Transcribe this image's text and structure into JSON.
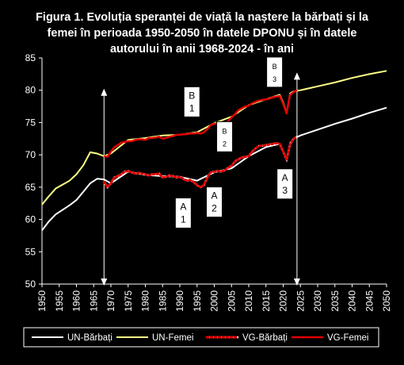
{
  "title_lines": [
    "Figura 1. Evoluția speranței de viață la naștere la bărbați și la",
    "femei în perioada 1950-2050  în datele DPONU și în datele",
    "autorului în anii 1968-2024  - în ani"
  ],
  "colors": {
    "background": "#000000",
    "un_men": "#ffffff",
    "un_women": "#ffff88",
    "vg_men_dot": "#e00000",
    "vg_women": "#e00000",
    "box_fill": "#ffffff",
    "axis_text": "#ffffff"
  },
  "chart_data": {
    "type": "line",
    "xlim": [
      1950,
      2050
    ],
    "ylim": [
      50,
      85
    ],
    "x_ticks": [
      "1950",
      "1955",
      "1960",
      "1965",
      "1970",
      "1975",
      "1980",
      "1985",
      "1990",
      "1995",
      "2000",
      "2005",
      "2010",
      "2015",
      "2020",
      "2025",
      "2030",
      "2035",
      "2040",
      "2045",
      "2050"
    ],
    "y_ticks": [
      "85",
      "80",
      "75",
      "70",
      "65",
      "60",
      "55",
      "50"
    ],
    "grid": false,
    "legend_position": "bottom",
    "series": [
      {
        "name": "UN-Bărbați",
        "style": "solid-white",
        "x": [
          1950,
          1952,
          1954,
          1956,
          1958,
          1960,
          1962,
          1964,
          1966,
          1968,
          1970,
          1975,
          1980,
          1985,
          1990,
          1995,
          2000,
          2005,
          2010,
          2015,
          2019,
          2020,
          2021,
          2022,
          2023,
          2025,
          2030,
          2035,
          2040,
          2045,
          2050
        ],
        "y": [
          58.3,
          59.7,
          60.8,
          61.5,
          62.2,
          63.0,
          64.3,
          65.6,
          66.3,
          66.2,
          65.6,
          67.4,
          66.9,
          66.7,
          66.6,
          66.0,
          67.3,
          67.9,
          69.8,
          71.2,
          71.7,
          70.5,
          69.2,
          71.8,
          72.5,
          73.0,
          73.9,
          74.8,
          75.6,
          76.5,
          77.3
        ]
      },
      {
        "name": "UN-Femei",
        "style": "solid-yellow",
        "x": [
          1950,
          1952,
          1954,
          1956,
          1958,
          1960,
          1962,
          1964,
          1966,
          1968,
          1970,
          1975,
          1980,
          1985,
          1990,
          1995,
          2000,
          2005,
          2010,
          2015,
          2019,
          2020,
          2021,
          2022,
          2023,
          2025,
          2030,
          2035,
          2040,
          2045,
          2050
        ],
        "y": [
          62.3,
          63.6,
          64.8,
          65.4,
          66.0,
          67.0,
          68.4,
          70.4,
          70.2,
          69.8,
          70.2,
          72.3,
          72.6,
          73.0,
          73.1,
          73.5,
          74.9,
          75.9,
          77.7,
          78.6,
          79.3,
          78.1,
          76.5,
          79.5,
          79.8,
          80.0,
          80.6,
          81.2,
          81.9,
          82.5,
          83.0
        ]
      },
      {
        "name": "VG-Bărbați",
        "style": "dotted-red",
        "x": [
          1968,
          1969,
          1970,
          1971,
          1972,
          1973,
          1974,
          1975,
          1976,
          1977,
          1978,
          1979,
          1980,
          1981,
          1982,
          1983,
          1984,
          1985,
          1986,
          1987,
          1988,
          1989,
          1990,
          1991,
          1992,
          1993,
          1994,
          1995,
          1996,
          1997,
          1998,
          1999,
          2000,
          2001,
          2002,
          2003,
          2004,
          2005,
          2006,
          2007,
          2008,
          2009,
          2010,
          2011,
          2012,
          2013,
          2014,
          2015,
          2016,
          2017,
          2018,
          2019,
          2020,
          2021,
          2022,
          2023,
          2024
        ],
        "y": [
          65.8,
          65.0,
          65.6,
          66.5,
          66.7,
          67.0,
          67.4,
          67.5,
          67.3,
          67.1,
          67.2,
          67.1,
          67.0,
          66.8,
          67.0,
          67.0,
          67.1,
          66.5,
          66.6,
          66.8,
          66.7,
          66.5,
          66.6,
          66.3,
          66.0,
          66.1,
          65.8,
          65.3,
          65.0,
          65.3,
          66.5,
          67.3,
          67.4,
          67.5,
          67.4,
          67.6,
          68.0,
          68.3,
          69.0,
          69.3,
          69.6,
          69.7,
          69.8,
          70.5,
          71.0,
          71.4,
          71.4,
          71.5,
          71.6,
          71.7,
          71.8,
          71.7,
          70.5,
          69.3,
          71.6,
          72.5,
          72.8
        ]
      },
      {
        "name": "VG-Femei",
        "style": "solid-red",
        "x": [
          1968,
          1969,
          1970,
          1971,
          1972,
          1973,
          1974,
          1975,
          1976,
          1977,
          1978,
          1979,
          1980,
          1981,
          1982,
          1983,
          1984,
          1985,
          1986,
          1987,
          1988,
          1989,
          1990,
          1991,
          1992,
          1993,
          1994,
          1995,
          1996,
          1997,
          1998,
          1999,
          2000,
          2001,
          2002,
          2003,
          2004,
          2005,
          2006,
          2007,
          2008,
          2009,
          2010,
          2011,
          2012,
          2013,
          2014,
          2015,
          2016,
          2017,
          2018,
          2019,
          2020,
          2021,
          2022,
          2023,
          2024
        ],
        "y": [
          69.8,
          69.7,
          70.5,
          71.2,
          71.5,
          71.9,
          72.0,
          72.1,
          72.1,
          72.3,
          72.4,
          72.4,
          72.3,
          72.6,
          72.6,
          72.7,
          72.8,
          72.5,
          72.6,
          72.8,
          72.9,
          73.1,
          73.1,
          73.2,
          73.2,
          73.3,
          73.3,
          73.4,
          73.3,
          73.5,
          74.0,
          74.6,
          74.8,
          74.9,
          74.8,
          74.9,
          75.2,
          75.8,
          76.3,
          76.9,
          77.2,
          77.5,
          77.6,
          78.0,
          78.2,
          78.4,
          78.5,
          78.6,
          78.7,
          78.9,
          79.0,
          79.1,
          77.9,
          76.4,
          79.3,
          79.7,
          80.0
        ]
      }
    ],
    "annotations": [
      {
        "text": [
          "B",
          "1"
        ],
        "x": 1993.5,
        "y": 78.2
      },
      {
        "text": [
          "B",
          "2"
        ],
        "x": 2003,
        "y": 72.8
      },
      {
        "text": [
          "B",
          "3"
        ],
        "x": 2017.5,
        "y": 82.8
      },
      {
        "text": [
          "A",
          "1"
        ],
        "x": 1991,
        "y": 61.0
      },
      {
        "text": [
          "A",
          "2"
        ],
        "x": 2000,
        "y": 62.7
      },
      {
        "text": [
          "A",
          "3"
        ],
        "x": 2020.5,
        "y": 65.5
      }
    ],
    "arrows": [
      {
        "x": 1968,
        "y_from": 50,
        "y_to": 80
      },
      {
        "x": 2024,
        "y_from": 50,
        "y_to": 82.5
      }
    ]
  }
}
